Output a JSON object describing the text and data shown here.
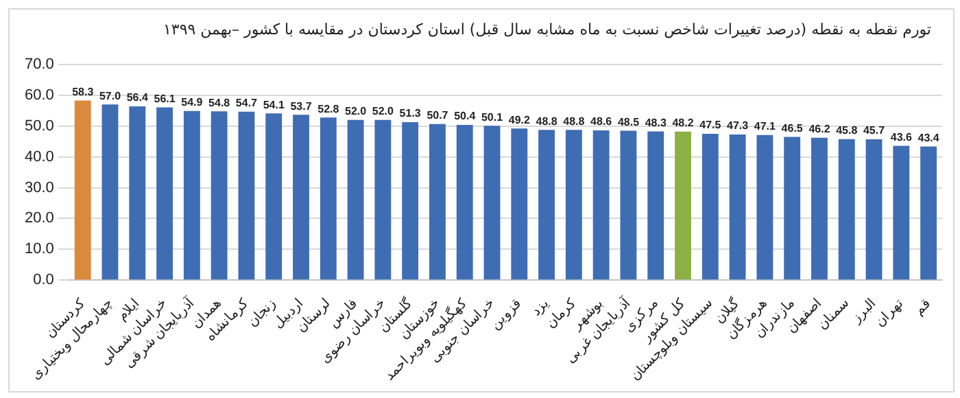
{
  "chart_data": {
    "type": "bar",
    "title": "تورم نقطه به نقطه (درصد تغییرات شاخص نسبت به ماه مشابه سال قبل) استان کردستان در مقایسه با کشور –بهمن ۱۳۹۹",
    "categories": [
      "کردستان",
      "چهارمحال وبختیاری",
      "ایلام",
      "خراسان شمالی",
      "آذربایجان شرقی",
      "همدان",
      "کرمانشاه",
      "زنجان",
      "اردبیل",
      "لرستان",
      "فارس",
      "خراسان رضوی",
      "گلستان",
      "خوزستان",
      "کهگیلویه وبویراحمد",
      "خراسان جنوبی",
      "قزوین",
      "یزد",
      "کرمان",
      "بوشهر",
      "آذربایجان غربی",
      "مرکزی",
      "کل کشور",
      "سیستان وبلوچستان",
      "گیلان",
      "هرمزگان",
      "مازندران",
      "اصفهان",
      "سمنان",
      "البرز",
      "تهران",
      "قم"
    ],
    "values": [
      58.3,
      57.0,
      56.4,
      56.1,
      54.9,
      54.8,
      54.7,
      54.1,
      53.7,
      52.8,
      52.0,
      52.0,
      51.3,
      50.7,
      50.4,
      50.1,
      49.2,
      48.8,
      48.8,
      48.6,
      48.5,
      48.3,
      48.2,
      47.5,
      47.3,
      47.1,
      46.5,
      46.2,
      45.8,
      45.7,
      43.6,
      43.4
    ],
    "value_labels": [
      "58.3",
      "57.0",
      "56.4",
      "56.1",
      "54.9",
      "54.8",
      "54.7",
      "54.1",
      "53.7",
      "52.8",
      "52.0",
      "52.0",
      "51.3",
      "50.7",
      "50.4",
      "50.1",
      "49.2",
      "48.8",
      "48.8",
      "48.6",
      "48.5",
      "48.3",
      "48.2",
      "47.5",
      "47.3",
      "47.1",
      "46.5",
      "46.2",
      "45.8",
      "45.7",
      "43.6",
      "43.4"
    ],
    "colors": [
      "#d98a3c",
      "#3f6db3",
      "#3f6db3",
      "#3f6db3",
      "#3f6db3",
      "#3f6db3",
      "#3f6db3",
      "#3f6db3",
      "#3f6db3",
      "#3f6db3",
      "#3f6db3",
      "#3f6db3",
      "#3f6db3",
      "#3f6db3",
      "#3f6db3",
      "#3f6db3",
      "#3f6db3",
      "#3f6db3",
      "#3f6db3",
      "#3f6db3",
      "#3f6db3",
      "#3f6db3",
      "#8cb043",
      "#3f6db3",
      "#3f6db3",
      "#3f6db3",
      "#3f6db3",
      "#3f6db3",
      "#3f6db3",
      "#3f6db3",
      "#3f6db3",
      "#3f6db3"
    ],
    "ylim": [
      0,
      70
    ],
    "yticks": [
      {
        "value": 0,
        "label": "0.0"
      },
      {
        "value": 10,
        "label": "10.0"
      },
      {
        "value": 20,
        "label": "20.0"
      },
      {
        "value": 30,
        "label": "30.0"
      },
      {
        "value": 40,
        "label": "40.0"
      },
      {
        "value": 50,
        "label": "50.0"
      },
      {
        "value": 60,
        "label": "60.0"
      },
      {
        "value": 70,
        "label": "70.0"
      }
    ],
    "grid": "y",
    "legend": false
  }
}
